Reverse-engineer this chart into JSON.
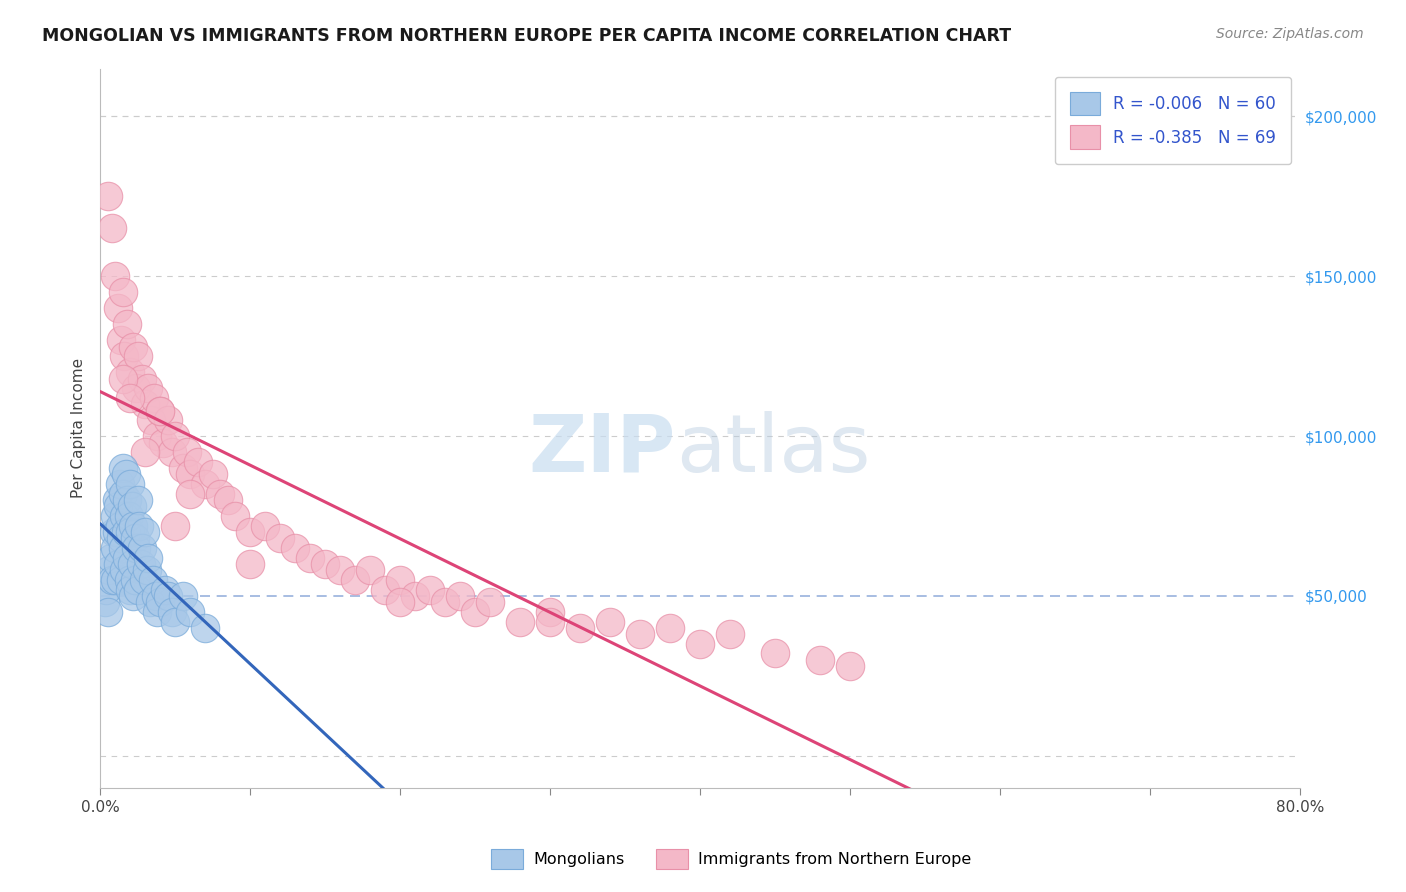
{
  "title": "MONGOLIAN VS IMMIGRANTS FROM NORTHERN EUROPE PER CAPITA INCOME CORRELATION CHART",
  "source": "Source: ZipAtlas.com",
  "ylabel": "Per Capita Income",
  "xlim": [
    0.0,
    0.8
  ],
  "ylim": [
    -10000,
    215000
  ],
  "yticks": [
    0,
    50000,
    100000,
    150000,
    200000
  ],
  "ytick_labels": [
    "",
    "$50,000",
    "$100,000",
    "$150,000",
    "$200,000"
  ],
  "r_mongolian": -0.006,
  "n_mongolian": 60,
  "r_northern_europe": -0.385,
  "n_northern_europe": 69,
  "blue_color": "#a8c8e8",
  "pink_color": "#f4b8c8",
  "blue_edge_color": "#7aabda",
  "pink_edge_color": "#e890a8",
  "blue_line_color": "#3366bb",
  "pink_line_color": "#dd4477",
  "watermark_zip": "ZIP",
  "watermark_atlas": "atlas",
  "legend_label_blue": "Mongolians",
  "legend_label_pink": "Immigrants from Northern Europe",
  "mongolian_x": [
    0.003,
    0.004,
    0.005,
    0.006,
    0.007,
    0.008,
    0.009,
    0.01,
    0.01,
    0.01,
    0.011,
    0.011,
    0.012,
    0.012,
    0.013,
    0.013,
    0.014,
    0.014,
    0.015,
    0.015,
    0.015,
    0.016,
    0.016,
    0.017,
    0.017,
    0.018,
    0.018,
    0.019,
    0.019,
    0.02,
    0.02,
    0.02,
    0.021,
    0.021,
    0.022,
    0.022,
    0.023,
    0.023,
    0.024,
    0.025,
    0.025,
    0.026,
    0.027,
    0.028,
    0.029,
    0.03,
    0.031,
    0.032,
    0.033,
    0.035,
    0.037,
    0.038,
    0.04,
    0.043,
    0.045,
    0.048,
    0.05,
    0.055,
    0.06,
    0.07
  ],
  "mongolian_y": [
    48000,
    52000,
    45000,
    58000,
    62000,
    55000,
    70000,
    75000,
    65000,
    55000,
    80000,
    70000,
    78000,
    60000,
    85000,
    72000,
    68000,
    55000,
    90000,
    82000,
    65000,
    75000,
    58000,
    88000,
    70000,
    80000,
    62000,
    75000,
    55000,
    85000,
    70000,
    52000,
    78000,
    60000,
    72000,
    50000,
    68000,
    55000,
    65000,
    80000,
    52000,
    72000,
    60000,
    65000,
    55000,
    70000,
    58000,
    62000,
    48000,
    55000,
    50000,
    45000,
    48000,
    52000,
    50000,
    45000,
    42000,
    50000,
    45000,
    40000
  ],
  "northern_europe_x": [
    0.005,
    0.008,
    0.01,
    0.012,
    0.014,
    0.015,
    0.016,
    0.018,
    0.02,
    0.022,
    0.024,
    0.025,
    0.028,
    0.03,
    0.032,
    0.034,
    0.036,
    0.038,
    0.04,
    0.042,
    0.045,
    0.048,
    0.05,
    0.055,
    0.058,
    0.06,
    0.065,
    0.07,
    0.075,
    0.08,
    0.085,
    0.09,
    0.1,
    0.11,
    0.12,
    0.13,
    0.14,
    0.15,
    0.16,
    0.17,
    0.18,
    0.19,
    0.2,
    0.21,
    0.22,
    0.23,
    0.24,
    0.25,
    0.26,
    0.28,
    0.3,
    0.32,
    0.34,
    0.36,
    0.38,
    0.4,
    0.42,
    0.45,
    0.48,
    0.5,
    0.015,
    0.02,
    0.03,
    0.04,
    0.05,
    0.06,
    0.1,
    0.2,
    0.3
  ],
  "northern_europe_y": [
    175000,
    165000,
    150000,
    140000,
    130000,
    145000,
    125000,
    135000,
    120000,
    128000,
    115000,
    125000,
    118000,
    110000,
    115000,
    105000,
    112000,
    100000,
    108000,
    98000,
    105000,
    95000,
    100000,
    90000,
    95000,
    88000,
    92000,
    85000,
    88000,
    82000,
    80000,
    75000,
    70000,
    72000,
    68000,
    65000,
    62000,
    60000,
    58000,
    55000,
    58000,
    52000,
    55000,
    50000,
    52000,
    48000,
    50000,
    45000,
    48000,
    42000,
    45000,
    40000,
    42000,
    38000,
    40000,
    35000,
    38000,
    32000,
    30000,
    28000,
    118000,
    112000,
    95000,
    108000,
    72000,
    82000,
    60000,
    48000,
    42000
  ]
}
